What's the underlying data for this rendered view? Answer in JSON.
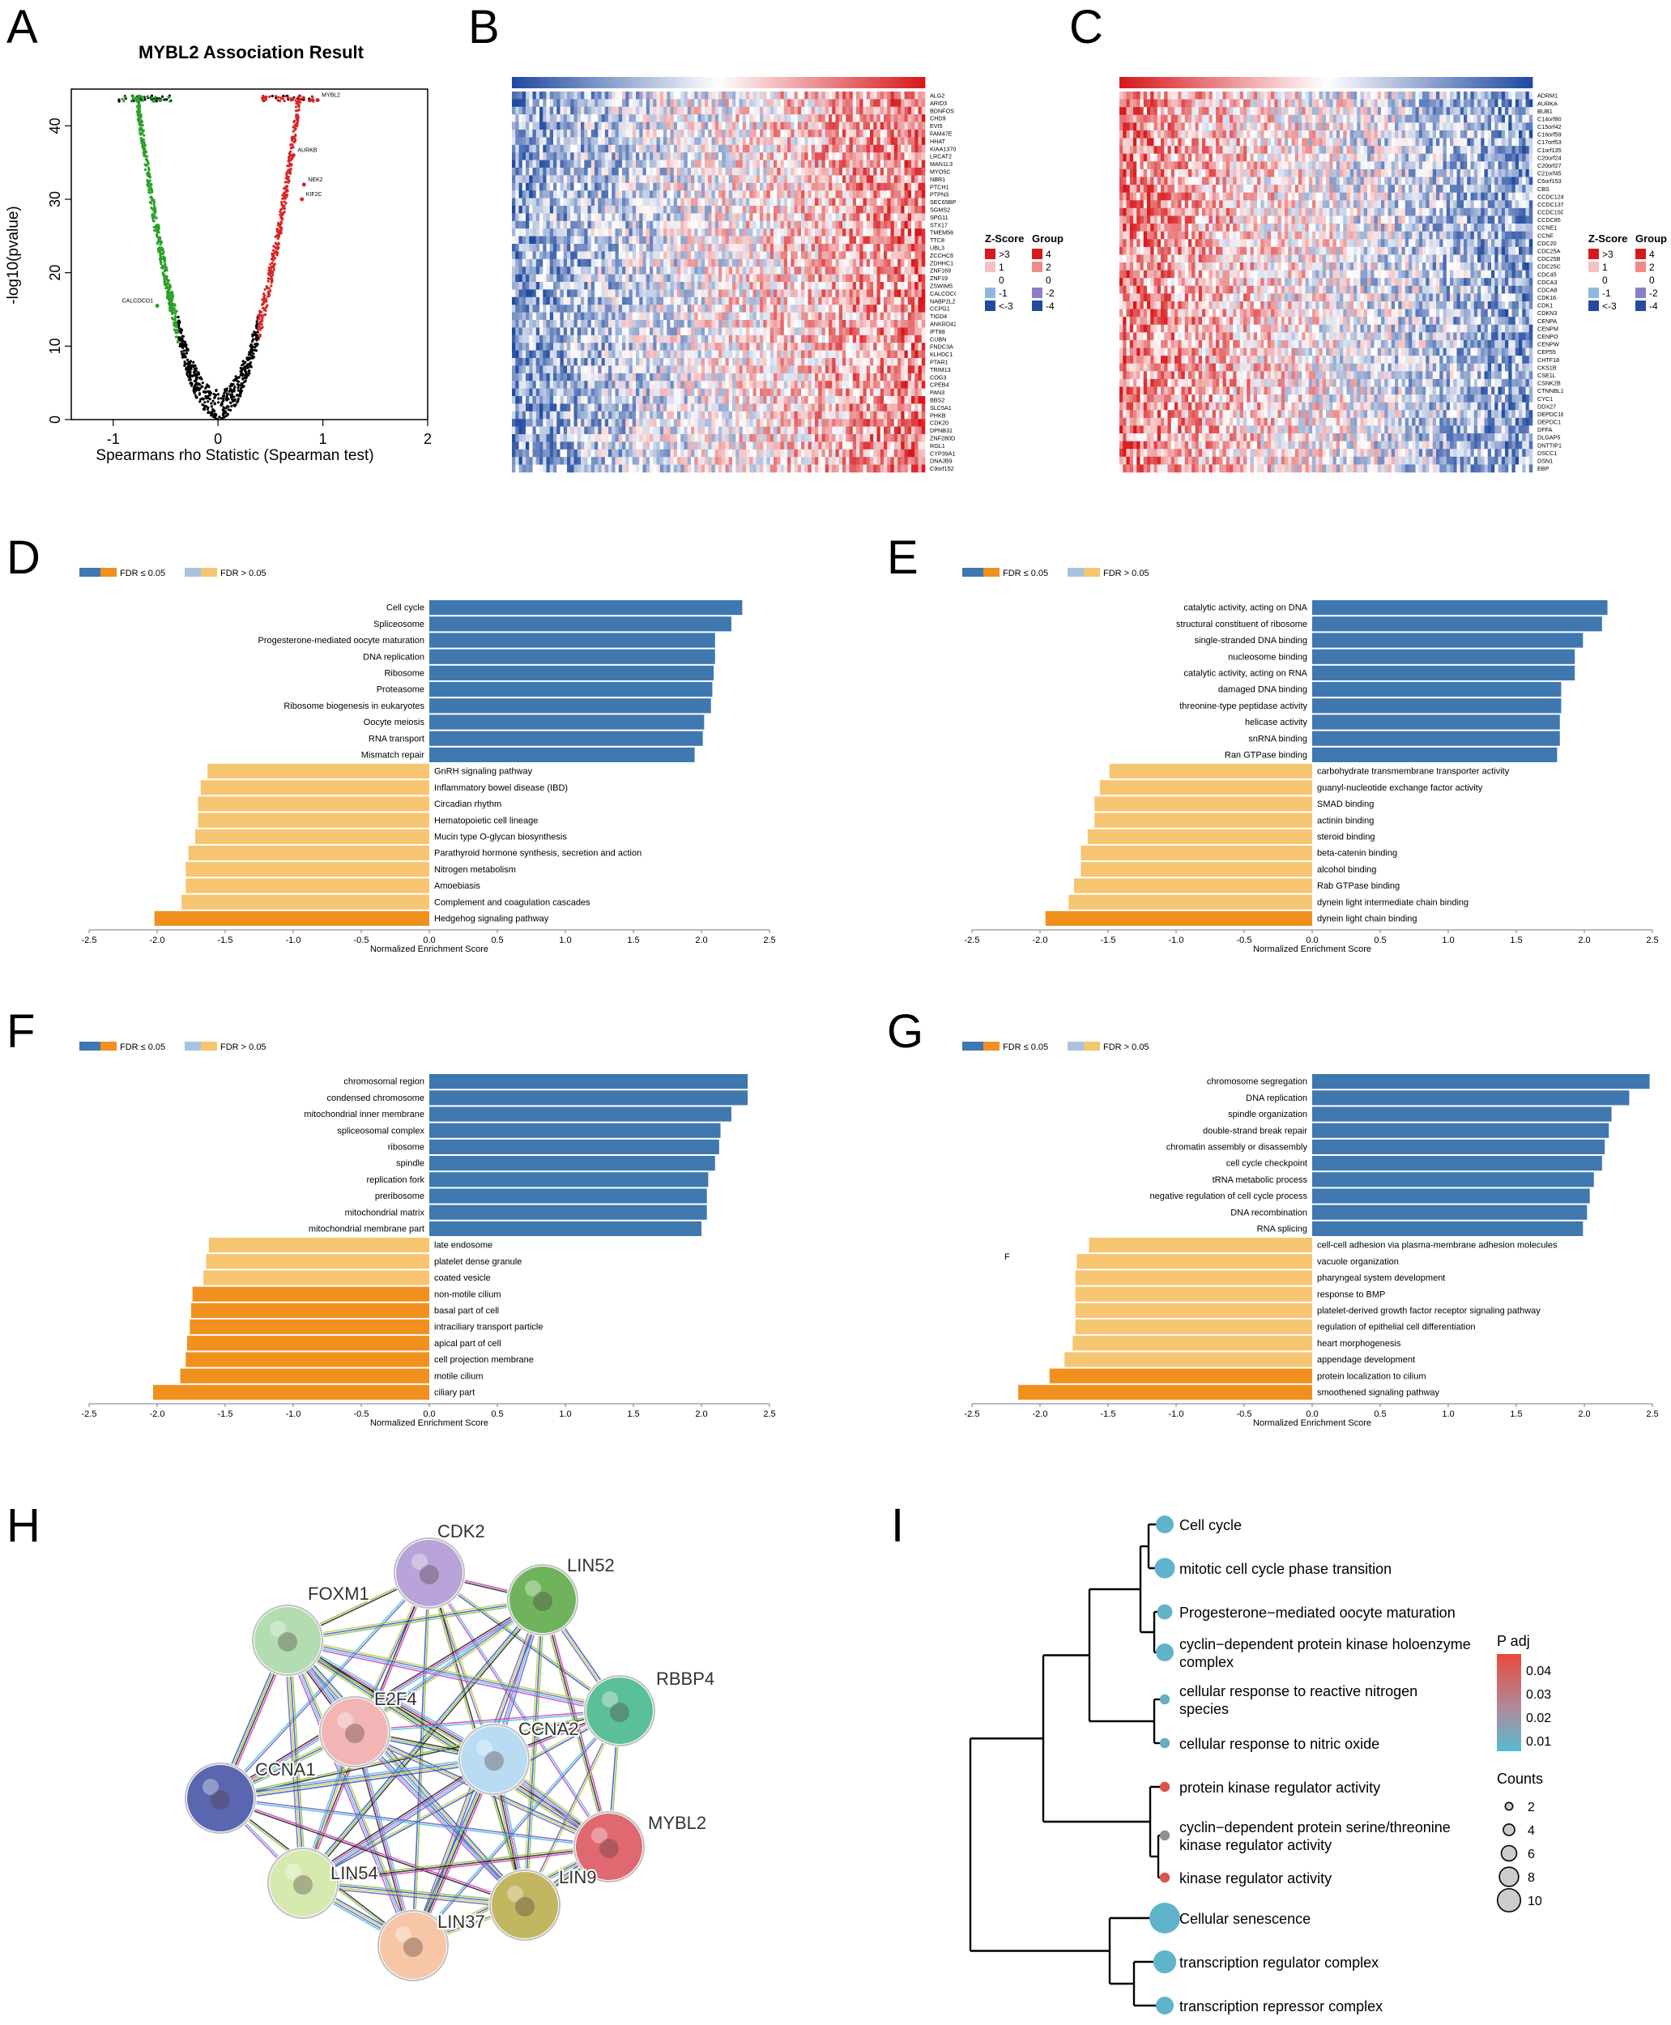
{
  "panel_labels": {
    "A": "A",
    "B": "B",
    "C": "C",
    "D": "D",
    "E": "E",
    "F": "F",
    "G": "G",
    "H": "H",
    "I": "I"
  },
  "colors": {
    "sig_pos": "#3f78ae",
    "sig_neg": "#f0901f",
    "ns_pos": "#a9c3dd",
    "ns_neg": "#f5c572",
    "heat_hi": "#d7191c",
    "heat_lo": "#2c4fa0",
    "pos_dot": "#d62728",
    "neg_dot": "#2ca02c",
    "enrich_low": "#56bbd4",
    "enrich_high": "#e8493b"
  },
  "legend": {
    "sig": "FDR ≤ 0.05",
    "ns": "FDR > 0.05"
  },
  "heat_legend": {
    "zscore_title": "Z-Score",
    "group_title": "Group",
    "z_labels": [
      ">3",
      "1",
      "0",
      "-1",
      "<-3"
    ],
    "g_labels": [
      "4",
      "2",
      "0",
      "-2",
      "-4"
    ]
  },
  "chart_data": [
    {
      "id": "A",
      "type": "scatter",
      "title": "MYBL2 Association Result",
      "xlabel": "Spearmans rho Statistic (Spearman test)",
      "ylabel": "-log10(pvalue)",
      "xlim": [
        -1.4,
        2.0
      ],
      "ylim": [
        0,
        45
      ],
      "xticks": [
        "-1",
        "0",
        "1",
        "2"
      ],
      "yticks": [
        "0",
        "10",
        "20",
        "30",
        "40"
      ],
      "labeled_points": [
        {
          "label": "AURKB",
          "x": 0.72,
          "y": 36
        },
        {
          "label": "NEK2",
          "x": 0.82,
          "y": 32
        },
        {
          "label": "KIF2C",
          "x": 0.8,
          "y": 30
        },
        {
          "label": "CALCOCO1",
          "x": -0.58,
          "y": 15.5
        },
        {
          "label": "MYBL2",
          "x": 0.95,
          "y": 43.5
        }
      ]
    },
    {
      "id": "B",
      "type": "heatmap",
      "corr": "positive",
      "genes": [
        "ALG2",
        "ARID3",
        "BDNFOS",
        "CHD9",
        "EVI5",
        "FAM47E",
        "HHAT",
        "KIAA1370",
        "LRCAT2",
        "MAN1L3",
        "MYO5C",
        "NBR1",
        "PTCH1",
        "PTPN3",
        "SEC65BP2L",
        "SGMS2",
        "SPG11",
        "STX17",
        "TMEM56",
        "TTC8",
        "UBL3",
        "ZCCHC6",
        "ZDHHC1",
        "ZNF169",
        "ZNF19",
        "ZSWIM5",
        "CALCOCO1",
        "NABP2L2",
        "CCPG1",
        "TIGD4",
        "ANKRD42",
        "IFT88",
        "CUBN",
        "FNDC3A",
        "KLHDC1",
        "PTAR1",
        "TRIM13",
        "COG3",
        "CPEB4",
        "PAN3",
        "BBS2",
        "SLC5A1",
        "PHKB",
        "CDK20",
        "DPNB31",
        "ZNF280D",
        "RGL1",
        "CYP39A1",
        "DNAJB9",
        "C9orf152"
      ]
    },
    {
      "id": "C",
      "type": "heatmap",
      "corr": "negative",
      "genes": [
        "ADRM1",
        "AURKA",
        "BUB1",
        "C14orf80",
        "C15orf42",
        "C16orf59",
        "C17orf53",
        "C1orf135",
        "C20orf24",
        "C20orf27",
        "C21orf45",
        "C6orf153",
        "CBS",
        "CCDC124",
        "CCDC137",
        "CCDC150",
        "CCDC85",
        "CCNE1",
        "CCNF",
        "CDC20",
        "CDC25A",
        "CDC25B",
        "CDC25C",
        "CDC45",
        "CDCA3",
        "CDCA8",
        "CDK16",
        "CDK1",
        "CDKN3",
        "CENPA",
        "CENPM",
        "CENPO",
        "CENPW",
        "CEP55",
        "CHTF18",
        "CKS1B",
        "CSE1L",
        "CSNK2B",
        "CTNNBL1",
        "CYC1",
        "DDX27",
        "DEPDC1B",
        "DEPDC1",
        "DFFA",
        "DLGAP5",
        "DNTTIP1",
        "DSCC1",
        "DSN1",
        "EBP"
      ]
    },
    {
      "id": "D",
      "type": "bar",
      "orientation": "horizontal",
      "xlabel": "Normalized Enrichment Score",
      "xlim": [
        -2.5,
        2.5
      ],
      "ticks": [
        "-2.5",
        "-2.0",
        "-1.5",
        "-1.0",
        "-0.5",
        "0.0",
        "0.5",
        "1.0",
        "1.5",
        "2.0",
        "2.5"
      ],
      "categories": [
        "Cell cycle",
        "Spliceosome",
        "Progesterone-mediated oocyte maturation",
        "DNA replication",
        "Ribosome",
        "Proteasome",
        "Ribosome biogenesis in eukaryotes",
        "Oocyte meiosis",
        "RNA transport",
        "Mismatch repair",
        "GnRH signaling pathway",
        "Inflammatory bowel disease (IBD)",
        "Circadian rhythm",
        "Hematopoietic cell lineage",
        "Mucin type O-glycan biosynthesis",
        "Parathyroid hormone synthesis, secretion and action",
        "Nitrogen metabolism",
        "Amoebiasis",
        "Complement and coagulation cascades",
        "Hedgehog signaling pathway"
      ],
      "values": [
        2.3,
        2.22,
        2.1,
        2.1,
        2.09,
        2.08,
        2.07,
        2.02,
        2.01,
        1.95,
        -1.63,
        -1.68,
        -1.7,
        -1.7,
        -1.72,
        -1.77,
        -1.79,
        -1.79,
        -1.82,
        -2.02
      ],
      "significant": [
        true,
        true,
        true,
        true,
        true,
        true,
        true,
        true,
        true,
        true,
        false,
        false,
        false,
        false,
        false,
        false,
        false,
        false,
        false,
        true
      ]
    },
    {
      "id": "E",
      "type": "bar",
      "orientation": "horizontal",
      "xlabel": "Normalized Enrichment Score",
      "xlim": [
        -2.5,
        2.5
      ],
      "ticks": [
        "-2.5",
        "-2.0",
        "-1.5",
        "-1.0",
        "-0.5",
        "0.0",
        "0.5",
        "1.0",
        "1.5",
        "2.0",
        "2.5"
      ],
      "categories": [
        "catalytic activity, acting on DNA",
        "structural constituent of ribosome",
        "single-stranded DNA binding",
        "nucleosome binding",
        "catalytic activity, acting on RNA",
        "damaged DNA binding",
        "threonine-type peptidase activity",
        "helicase activity",
        "snRNA binding",
        "Ran GTPase binding",
        "carbohydrate transmembrane transporter activity",
        "guanyl-nucleotide exchange factor activity",
        "SMAD binding",
        "actinin binding",
        "steroid binding",
        "beta-catenin binding",
        "alcohol binding",
        "Rab GTPase binding",
        "dynein light intermediate chain binding",
        "dynein light chain binding"
      ],
      "values": [
        2.17,
        2.13,
        1.99,
        1.93,
        1.93,
        1.83,
        1.83,
        1.82,
        1.82,
        1.8,
        -1.49,
        -1.56,
        -1.6,
        -1.6,
        -1.65,
        -1.7,
        -1.7,
        -1.75,
        -1.79,
        -1.96
      ],
      "significant": [
        true,
        true,
        true,
        true,
        true,
        true,
        true,
        true,
        true,
        true,
        false,
        false,
        false,
        false,
        false,
        false,
        false,
        false,
        false,
        true
      ]
    },
    {
      "id": "F",
      "type": "bar",
      "orientation": "horizontal",
      "xlabel": "Normalized Enrichment Score",
      "xlim": [
        -2.5,
        2.5
      ],
      "ticks": [
        "-2.5",
        "-2.0",
        "-1.5",
        "-1.0",
        "-0.5",
        "0.0",
        "0.5",
        "1.0",
        "1.5",
        "2.0",
        "2.5"
      ],
      "categories": [
        "chromosomal region",
        "condensed chromosome",
        "mitochondrial inner membrane",
        "spliceosomal complex",
        "ribosome",
        "spindle",
        "replication fork",
        "preribosome",
        "mitochondrial matrix",
        "mitochondrial membrane part",
        "late endosome",
        "platelet dense granule",
        "coated vesicle",
        "non-motile cilium",
        "basal part of cell",
        "intraciliary transport particle",
        "apical part of cell",
        "cell projection membrane",
        "motile cilium",
        "ciliary part"
      ],
      "values": [
        2.34,
        2.34,
        2.22,
        2.14,
        2.13,
        2.1,
        2.05,
        2.04,
        2.04,
        2.0,
        -1.62,
        -1.64,
        -1.66,
        -1.74,
        -1.75,
        -1.76,
        -1.78,
        -1.79,
        -1.83,
        -2.03
      ],
      "significant": [
        true,
        true,
        true,
        true,
        true,
        true,
        true,
        true,
        true,
        true,
        false,
        false,
        false,
        true,
        true,
        true,
        true,
        true,
        true,
        true
      ]
    },
    {
      "id": "G",
      "type": "bar",
      "orientation": "horizontal",
      "xlabel": "Normalized Enrichment Score",
      "xlim": [
        -2.5,
        2.5
      ],
      "ticks": [
        "-2.5",
        "-2.0",
        "-1.5",
        "-1.0",
        "-0.5",
        "0.0",
        "0.5",
        "1.0",
        "1.5",
        "2.0",
        "2.5"
      ],
      "annotation": "F",
      "categories": [
        "chromosome segregation",
        "DNA replication",
        "spindle organization",
        "double-strand break repair",
        "chromatin assembly or disassembly",
        "cell cycle checkpoint",
        "tRNA metabolic process",
        "negative regulation of cell cycle process",
        "DNA recombination",
        "RNA splicing",
        "cell-cell adhesion via plasma-membrane adhesion molecules",
        "vacuole organization",
        "pharyngeal system development",
        "response to BMP",
        "platelet-derived growth factor receptor signaling pathway",
        "regulation of epithelial cell differentiation",
        "heart morphogenesis",
        "appendage development",
        "protein localization to cilium",
        "smoothened signaling pathway"
      ],
      "values": [
        2.48,
        2.33,
        2.2,
        2.18,
        2.15,
        2.13,
        2.07,
        2.04,
        2.02,
        1.99,
        -1.64,
        -1.73,
        -1.74,
        -1.74,
        -1.74,
        -1.74,
        -1.76,
        -1.82,
        -1.93,
        -2.16
      ],
      "significant": [
        true,
        true,
        true,
        true,
        true,
        true,
        true,
        true,
        true,
        true,
        false,
        false,
        false,
        false,
        false,
        false,
        false,
        false,
        true,
        true
      ]
    },
    {
      "id": "H",
      "type": "network",
      "nodes": [
        {
          "label": "CDK2",
          "color": "#b8a4d8"
        },
        {
          "label": "LIN52",
          "color": "#6fb45c"
        },
        {
          "label": "FOXM1",
          "color": "#b3dcb0"
        },
        {
          "label": "RBBP4",
          "color": "#5bbf98"
        },
        {
          "label": "E2F4",
          "color": "#f2b4b4"
        },
        {
          "label": "CCNA2",
          "color": "#b9dcf2"
        },
        {
          "label": "CCNA1",
          "color": "#5a66b0"
        },
        {
          "label": "MYBL2",
          "color": "#e06870"
        },
        {
          "label": "LIN54",
          "color": "#d6eab0"
        },
        {
          "label": "LIN9",
          "color": "#c2b660"
        },
        {
          "label": "LIN37",
          "color": "#f6c6a6"
        }
      ]
    },
    {
      "id": "I",
      "type": "dendrogram_dot",
      "terms": [
        "Cell cycle",
        "mitotic cell cycle phase transition",
        "Progesterone−mediated oocyte maturation",
        "cyclin−dependent protein kinase holoenzyme complex",
        "cellular response to reactive nitrogen species",
        "cellular response to nitric oxide",
        "protein kinase regulator activity",
        "cyclin−dependent protein serine/threonine kinase regulator activity",
        "kinase regulator activity",
        "Cellular senescence",
        "transcription regulator complex",
        "transcription repressor complex"
      ],
      "counts": [
        5,
        6,
        4,
        5,
        2,
        2,
        2,
        2,
        2,
        10,
        7,
        5
      ],
      "padj": [
        0.003,
        0.003,
        0.004,
        0.004,
        0.006,
        0.006,
        0.046,
        0.02,
        0.045,
        0.003,
        0.003,
        0.003
      ],
      "legend": {
        "padj_title": "P adj",
        "padj_ticks": [
          "0.04",
          "0.03",
          "0.02",
          "0.01"
        ],
        "counts_title": "Counts",
        "counts_ticks": [
          "2",
          "4",
          "6",
          "8",
          "10"
        ]
      }
    }
  ]
}
